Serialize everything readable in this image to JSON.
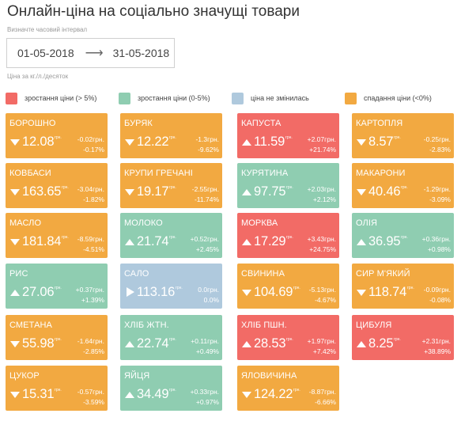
{
  "header": {
    "title": "Онлайн-ціна на соціально значущі товари",
    "interval_hint": "Визначте часовий інтервал",
    "date_from": "01-05-2018",
    "arrow_glyph": "⟶",
    "date_to": "31-05-2018",
    "unit_note": "Ціна за кг./л./десяток"
  },
  "colors": {
    "red": "#f26b66",
    "green": "#8fcdb1",
    "blue": "#afc9dd",
    "orange": "#f2a941"
  },
  "legend": [
    {
      "label": "зростання ціни (> 5%)",
      "color": "red"
    },
    {
      "label": "зростання ціни (0-5%)",
      "color": "green"
    },
    {
      "label": "ціна не змінилась",
      "color": "blue"
    },
    {
      "label": "спадання ціни (<0%)",
      "color": "orange"
    }
  ],
  "products": [
    {
      "name": "БОРОШНО",
      "price": "12.08",
      "unit": "грн.",
      "change_abs": "-0.02грн.",
      "change_pct": "-0.17%",
      "color": "orange",
      "direction": "down"
    },
    {
      "name": "БУРЯК",
      "price": "12.22",
      "unit": "грн.",
      "change_abs": "-1.3грн.",
      "change_pct": "-9.62%",
      "color": "orange",
      "direction": "down"
    },
    {
      "name": "КАПУСТА",
      "price": "11.59",
      "unit": "грн.",
      "change_abs": "+2.07грн.",
      "change_pct": "+21.74%",
      "color": "red",
      "direction": "up"
    },
    {
      "name": "КАРТОПЛЯ",
      "price": "8.57",
      "unit": "грн.",
      "change_abs": "-0.25грн.",
      "change_pct": "-2.83%",
      "color": "orange",
      "direction": "down"
    },
    {
      "name": "КОВБАСИ",
      "price": "163.65",
      "unit": "грн.",
      "change_abs": "-3.04грн.",
      "change_pct": "-1.82%",
      "color": "orange",
      "direction": "down"
    },
    {
      "name": "КРУПИ ГРЕЧАНІ",
      "price": "19.17",
      "unit": "грн.",
      "change_abs": "-2.55грн.",
      "change_pct": "-11.74%",
      "color": "orange",
      "direction": "down"
    },
    {
      "name": "КУРЯТИНА",
      "price": "97.75",
      "unit": "грн.",
      "change_abs": "+2.03грн.",
      "change_pct": "+2.12%",
      "color": "green",
      "direction": "up"
    },
    {
      "name": "МАКАРОНИ",
      "price": "40.46",
      "unit": "грн.",
      "change_abs": "-1.29грн.",
      "change_pct": "-3.09%",
      "color": "orange",
      "direction": "down"
    },
    {
      "name": "МАСЛО",
      "price": "181.84",
      "unit": "грн.",
      "change_abs": "-8.59грн.",
      "change_pct": "-4.51%",
      "color": "orange",
      "direction": "down"
    },
    {
      "name": "МОЛОКО",
      "price": "21.74",
      "unit": "грн.",
      "change_abs": "+0.52грн.",
      "change_pct": "+2.45%",
      "color": "green",
      "direction": "up"
    },
    {
      "name": "МОРКВА",
      "price": "17.29",
      "unit": "грн.",
      "change_abs": "+3.43грн.",
      "change_pct": "+24.75%",
      "color": "red",
      "direction": "up"
    },
    {
      "name": "ОЛІЯ",
      "price": "36.95",
      "unit": "грн.",
      "change_abs": "+0.36грн.",
      "change_pct": "+0.98%",
      "color": "green",
      "direction": "up"
    },
    {
      "name": "РИС",
      "price": "27.06",
      "unit": "грн.",
      "change_abs": "+0.37грн.",
      "change_pct": "+1.39%",
      "color": "green",
      "direction": "up"
    },
    {
      "name": "САЛО",
      "price": "113.16",
      "unit": "грн.",
      "change_abs": "0.0грн.",
      "change_pct": "0.0%",
      "color": "blue",
      "direction": "flat"
    },
    {
      "name": "СВИНИНА",
      "price": "104.69",
      "unit": "грн.",
      "change_abs": "-5.13грн.",
      "change_pct": "-4.67%",
      "color": "orange",
      "direction": "down"
    },
    {
      "name": "СИР М'ЯКИЙ",
      "price": "118.74",
      "unit": "грн.",
      "change_abs": "-0.09грн.",
      "change_pct": "-0.08%",
      "color": "orange",
      "direction": "down"
    },
    {
      "name": "СМЕТАНА",
      "price": "55.98",
      "unit": "грн.",
      "change_abs": "-1.64грн.",
      "change_pct": "-2.85%",
      "color": "orange",
      "direction": "down"
    },
    {
      "name": "ХЛІБ ЖТН.",
      "price": "22.74",
      "unit": "грн.",
      "change_abs": "+0.11грн.",
      "change_pct": "+0.49%",
      "color": "green",
      "direction": "up"
    },
    {
      "name": "ХЛІБ ПШН.",
      "price": "28.53",
      "unit": "грн.",
      "change_abs": "+1.97грн.",
      "change_pct": "+7.42%",
      "color": "red",
      "direction": "up"
    },
    {
      "name": "ЦИБУЛЯ",
      "price": "8.25",
      "unit": "грн.",
      "change_abs": "+2.31грн.",
      "change_pct": "+38.89%",
      "color": "red",
      "direction": "up"
    },
    {
      "name": "ЦУКОР",
      "price": "15.31",
      "unit": "грн.",
      "change_abs": "-0.57грн.",
      "change_pct": "-3.59%",
      "color": "orange",
      "direction": "down"
    },
    {
      "name": "ЯЙЦЯ",
      "price": "34.49",
      "unit": "грн.",
      "change_abs": "+0.33грн.",
      "change_pct": "+0.97%",
      "color": "green",
      "direction": "up"
    },
    {
      "name": "ЯЛОВИЧИНА",
      "price": "124.22",
      "unit": "грн.",
      "change_abs": "-8.87грн.",
      "change_pct": "-6.66%",
      "color": "orange",
      "direction": "down"
    }
  ]
}
